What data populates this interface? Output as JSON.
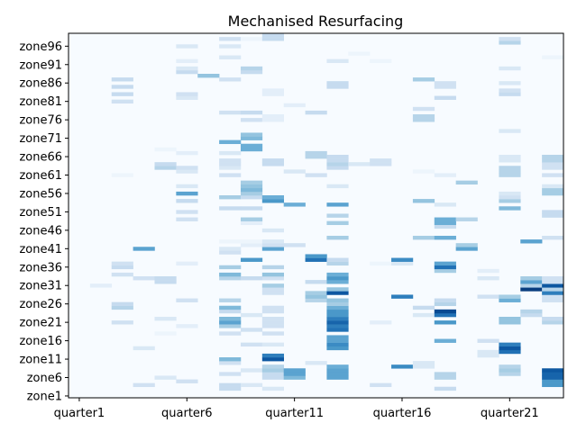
{
  "chart_data": {
    "type": "heatmap",
    "title": "Mechanised Resurfacing",
    "xlabel": "",
    "ylabel": "",
    "colormap": "Blues",
    "x_count": 23,
    "y_count": 99,
    "x_tick_labels": [
      "quarter1",
      "quarter6",
      "quarter11",
      "quarter16",
      "quarter21"
    ],
    "y_tick_labels": [
      "zone1",
      "zone6",
      "zone11",
      "zone16",
      "zone21",
      "zone26",
      "zone31",
      "zone36",
      "zone41",
      "zone46",
      "zone51",
      "zone56",
      "zone61",
      "zone66",
      "zone71",
      "zone76",
      "zone81",
      "zone86",
      "zone91",
      "zone96"
    ],
    "background_value": 0,
    "max_value": 1,
    "cells": [
      [
        1,
        30,
        0.1
      ],
      [
        2,
        20,
        0.2
      ],
      [
        2,
        24,
        0.3
      ],
      [
        2,
        25,
        0.25
      ],
      [
        2,
        33,
        0.2
      ],
      [
        2,
        35,
        0.25
      ],
      [
        2,
        36,
        0.2
      ],
      [
        2,
        60,
        0.05
      ],
      [
        2,
        80,
        0.2
      ],
      [
        2,
        82,
        0.25
      ],
      [
        2,
        84,
        0.25
      ],
      [
        2,
        86,
        0.25
      ],
      [
        3,
        3,
        0.2
      ],
      [
        3,
        13,
        0.15
      ],
      [
        3,
        32,
        0.2
      ],
      [
        3,
        40,
        0.55
      ],
      [
        4,
        5,
        0.15
      ],
      [
        4,
        17,
        0.05
      ],
      [
        4,
        21,
        0.15
      ],
      [
        4,
        31,
        0.25
      ],
      [
        4,
        32,
        0.25
      ],
      [
        4,
        62,
        0.3
      ],
      [
        4,
        63,
        0.25
      ],
      [
        4,
        67,
        0.05
      ],
      [
        5,
        4,
        0.2
      ],
      [
        5,
        19,
        0.1
      ],
      [
        5,
        26,
        0.2
      ],
      [
        5,
        36,
        0.1
      ],
      [
        5,
        48,
        0.2
      ],
      [
        5,
        50,
        0.2
      ],
      [
        5,
        53,
        0.25
      ],
      [
        5,
        55,
        0.55
      ],
      [
        5,
        57,
        0.15
      ],
      [
        5,
        61,
        0.15
      ],
      [
        5,
        62,
        0.2
      ],
      [
        5,
        66,
        0.1
      ],
      [
        5,
        81,
        0.15
      ],
      [
        5,
        82,
        0.2
      ],
      [
        5,
        88,
        0.25
      ],
      [
        5,
        89,
        0.15
      ],
      [
        5,
        91,
        0.1
      ],
      [
        5,
        95,
        0.15
      ],
      [
        6,
        87,
        0.4
      ],
      [
        7,
        2,
        0.25
      ],
      [
        7,
        3,
        0.25
      ],
      [
        7,
        6,
        0.2
      ],
      [
        7,
        9,
        0.2
      ],
      [
        7,
        10,
        0.45
      ],
      [
        7,
        17,
        0.2
      ],
      [
        7,
        19,
        0.35
      ],
      [
        7,
        20,
        0.55
      ],
      [
        7,
        21,
        0.45
      ],
      [
        7,
        23,
        0.25
      ],
      [
        7,
        24,
        0.45
      ],
      [
        7,
        26,
        0.3
      ],
      [
        7,
        32,
        0.3
      ],
      [
        7,
        33,
        0.45
      ],
      [
        7,
        35,
        0.35
      ],
      [
        7,
        39,
        0.2
      ],
      [
        7,
        40,
        0.15
      ],
      [
        7,
        42,
        0.05
      ],
      [
        7,
        51,
        0.25
      ],
      [
        7,
        54,
        0.35
      ],
      [
        7,
        60,
        0.2
      ],
      [
        7,
        62,
        0.15
      ],
      [
        7,
        63,
        0.2
      ],
      [
        7,
        64,
        0.2
      ],
      [
        7,
        66,
        0.15
      ],
      [
        7,
        69,
        0.5
      ],
      [
        7,
        77,
        0.2
      ],
      [
        7,
        86,
        0.2
      ],
      [
        7,
        92,
        0.15
      ],
      [
        7,
        95,
        0.15
      ],
      [
        7,
        97,
        0.2
      ],
      [
        8,
        3,
        0.15
      ],
      [
        8,
        7,
        0.15
      ],
      [
        8,
        14,
        0.2
      ],
      [
        8,
        18,
        0.2
      ],
      [
        8,
        22,
        0.15
      ],
      [
        8,
        32,
        0.25
      ],
      [
        8,
        37,
        0.6
      ],
      [
        8,
        41,
        0.1
      ],
      [
        8,
        42,
        0.05
      ],
      [
        8,
        47,
        0.1
      ],
      [
        8,
        48,
        0.35
      ],
      [
        8,
        51,
        0.25
      ],
      [
        8,
        54,
        0.25
      ],
      [
        8,
        55,
        0.35
      ],
      [
        8,
        56,
        0.45
      ],
      [
        8,
        57,
        0.4
      ],
      [
        8,
        58,
        0.35
      ],
      [
        8,
        67,
        0.5
      ],
      [
        8,
        68,
        0.5
      ],
      [
        8,
        70,
        0.45
      ],
      [
        8,
        71,
        0.4
      ],
      [
        8,
        75,
        0.2
      ],
      [
        8,
        77,
        0.25
      ],
      [
        8,
        88,
        0.25
      ],
      [
        8,
        89,
        0.3
      ],
      [
        8,
        97,
        0.05
      ],
      [
        9,
        2,
        0.15
      ],
      [
        9,
        5,
        0.25
      ],
      [
        9,
        6,
        0.25
      ],
      [
        9,
        7,
        0.35
      ],
      [
        9,
        8,
        0.3
      ],
      [
        9,
        10,
        0.85
      ],
      [
        9,
        11,
        0.7
      ],
      [
        9,
        14,
        0.15
      ],
      [
        9,
        17,
        0.2
      ],
      [
        9,
        19,
        0.2
      ],
      [
        9,
        20,
        0.2
      ],
      [
        9,
        21,
        0.2
      ],
      [
        9,
        23,
        0.2
      ],
      [
        9,
        24,
        0.2
      ],
      [
        9,
        28,
        0.2
      ],
      [
        9,
        29,
        0.2
      ],
      [
        9,
        30,
        0.35
      ],
      [
        9,
        32,
        0.2
      ],
      [
        9,
        33,
        0.4
      ],
      [
        9,
        35,
        0.3
      ],
      [
        9,
        40,
        0.55
      ],
      [
        9,
        41,
        0.2
      ],
      [
        9,
        42,
        0.15
      ],
      [
        9,
        45,
        0.15
      ],
      [
        9,
        53,
        0.6
      ],
      [
        9,
        54,
        0.5
      ],
      [
        9,
        63,
        0.25
      ],
      [
        9,
        64,
        0.25
      ],
      [
        9,
        75,
        0.1
      ],
      [
        9,
        76,
        0.1
      ],
      [
        9,
        82,
        0.1
      ],
      [
        9,
        83,
        0.1
      ],
      [
        9,
        97,
        0.25
      ],
      [
        9,
        98,
        0.25
      ],
      [
        10,
        5,
        0.45
      ],
      [
        10,
        6,
        0.55
      ],
      [
        10,
        7,
        0.55
      ],
      [
        10,
        41,
        0.2
      ],
      [
        10,
        52,
        0.5
      ],
      [
        10,
        61,
        0.15
      ],
      [
        10,
        79,
        0.1
      ],
      [
        11,
        9,
        0.15
      ],
      [
        11,
        26,
        0.3
      ],
      [
        11,
        27,
        0.4
      ],
      [
        11,
        28,
        0.35
      ],
      [
        11,
        31,
        0.25
      ],
      [
        11,
        37,
        0.75
      ],
      [
        11,
        38,
        0.6
      ],
      [
        11,
        60,
        0.2
      ],
      [
        11,
        65,
        0.3
      ],
      [
        11,
        66,
        0.3
      ],
      [
        11,
        77,
        0.25
      ],
      [
        12,
        5,
        0.55
      ],
      [
        12,
        6,
        0.55
      ],
      [
        12,
        7,
        0.55
      ],
      [
        12,
        8,
        0.5
      ],
      [
        12,
        13,
        0.6
      ],
      [
        12,
        14,
        0.65
      ],
      [
        12,
        15,
        0.55
      ],
      [
        12,
        16,
        0.55
      ],
      [
        12,
        18,
        0.75
      ],
      [
        12,
        19,
        0.7
      ],
      [
        12,
        20,
        0.8
      ],
      [
        12,
        21,
        0.7
      ],
      [
        12,
        22,
        0.6
      ],
      [
        12,
        23,
        0.6
      ],
      [
        12,
        24,
        0.5
      ],
      [
        12,
        25,
        0.35
      ],
      [
        12,
        26,
        0.4
      ],
      [
        12,
        28,
        0.85
      ],
      [
        12,
        29,
        0.4
      ],
      [
        12,
        31,
        0.5
      ],
      [
        12,
        32,
        0.6
      ],
      [
        12,
        33,
        0.5
      ],
      [
        12,
        36,
        0.3
      ],
      [
        12,
        37,
        0.25
      ],
      [
        12,
        43,
        0.35
      ],
      [
        12,
        47,
        0.35
      ],
      [
        12,
        49,
        0.3
      ],
      [
        12,
        52,
        0.55
      ],
      [
        12,
        57,
        0.15
      ],
      [
        12,
        62,
        0.25
      ],
      [
        12,
        63,
        0.3
      ],
      [
        12,
        64,
        0.25
      ],
      [
        12,
        65,
        0.25
      ],
      [
        12,
        84,
        0.25
      ],
      [
        12,
        85,
        0.25
      ],
      [
        12,
        91,
        0.15
      ],
      [
        13,
        63,
        0.15
      ],
      [
        13,
        93,
        0.05
      ],
      [
        14,
        3,
        0.2
      ],
      [
        14,
        20,
        0.1
      ],
      [
        14,
        36,
        0.05
      ],
      [
        14,
        63,
        0.2
      ],
      [
        14,
        64,
        0.2
      ],
      [
        14,
        91,
        0.05
      ],
      [
        15,
        8,
        0.65
      ],
      [
        15,
        27,
        0.7
      ],
      [
        15,
        36,
        0.15
      ],
      [
        15,
        37,
        0.65
      ],
      [
        16,
        8,
        0.15
      ],
      [
        16,
        9,
        0.15
      ],
      [
        16,
        22,
        0.15
      ],
      [
        16,
        24,
        0.25
      ],
      [
        16,
        43,
        0.35
      ],
      [
        16,
        53,
        0.4
      ],
      [
        16,
        61,
        0.05
      ],
      [
        16,
        75,
        0.3
      ],
      [
        16,
        76,
        0.3
      ],
      [
        16,
        78,
        0.2
      ],
      [
        16,
        86,
        0.35
      ],
      [
        17,
        2,
        0.25
      ],
      [
        17,
        5,
        0.3
      ],
      [
        17,
        6,
        0.3
      ],
      [
        17,
        15,
        0.5
      ],
      [
        17,
        20,
        0.6
      ],
      [
        17,
        22,
        0.75
      ],
      [
        17,
        23,
        0.9
      ],
      [
        17,
        25,
        0.3
      ],
      [
        17,
        26,
        0.25
      ],
      [
        17,
        34,
        0.35
      ],
      [
        17,
        35,
        0.75
      ],
      [
        17,
        36,
        0.55
      ],
      [
        17,
        43,
        0.5
      ],
      [
        17,
        46,
        0.25
      ],
      [
        17,
        47,
        0.5
      ],
      [
        17,
        48,
        0.5
      ],
      [
        17,
        52,
        0.15
      ],
      [
        17,
        60,
        0.1
      ],
      [
        17,
        81,
        0.25
      ],
      [
        17,
        84,
        0.2
      ],
      [
        17,
        85,
        0.2
      ],
      [
        18,
        40,
        0.55
      ],
      [
        18,
        41,
        0.35
      ],
      [
        18,
        48,
        0.3
      ],
      [
        18,
        58,
        0.35
      ],
      [
        19,
        11,
        0.15
      ],
      [
        19,
        12,
        0.15
      ],
      [
        19,
        15,
        0.2
      ],
      [
        19,
        27,
        0.2
      ],
      [
        19,
        32,
        0.15
      ],
      [
        19,
        34,
        0.1
      ],
      [
        20,
        6,
        0.3
      ],
      [
        20,
        7,
        0.35
      ],
      [
        20,
        8,
        0.3
      ],
      [
        20,
        12,
        0.75
      ],
      [
        20,
        13,
        0.85
      ],
      [
        20,
        14,
        0.7
      ],
      [
        20,
        20,
        0.4
      ],
      [
        20,
        21,
        0.4
      ],
      [
        20,
        26,
        0.5
      ],
      [
        20,
        27,
        0.35
      ],
      [
        20,
        51,
        0.45
      ],
      [
        20,
        53,
        0.35
      ],
      [
        20,
        54,
        0.2
      ],
      [
        20,
        55,
        0.15
      ],
      [
        20,
        60,
        0.3
      ],
      [
        20,
        61,
        0.3
      ],
      [
        20,
        62,
        0.3
      ],
      [
        20,
        64,
        0.15
      ],
      [
        20,
        65,
        0.15
      ],
      [
        20,
        72,
        0.15
      ],
      [
        20,
        82,
        0.25
      ],
      [
        20,
        83,
        0.2
      ],
      [
        20,
        85,
        0.15
      ],
      [
        20,
        89,
        0.15
      ],
      [
        20,
        96,
        0.3
      ],
      [
        20,
        97,
        0.2
      ],
      [
        21,
        22,
        0.25
      ],
      [
        21,
        23,
        0.3
      ],
      [
        21,
        29,
        0.95
      ],
      [
        21,
        30,
        0.3
      ],
      [
        21,
        31,
        0.55
      ],
      [
        21,
        32,
        0.35
      ],
      [
        21,
        42,
        0.55
      ],
      [
        22,
        3,
        0.6
      ],
      [
        22,
        4,
        0.6
      ],
      [
        22,
        5,
        0.8
      ],
      [
        22,
        6,
        0.8
      ],
      [
        22,
        7,
        0.85
      ],
      [
        22,
        20,
        0.3
      ],
      [
        22,
        21,
        0.25
      ],
      [
        22,
        26,
        0.2
      ],
      [
        22,
        27,
        0.2
      ],
      [
        22,
        28,
        0.7
      ],
      [
        22,
        29,
        0.3
      ],
      [
        22,
        30,
        0.85
      ],
      [
        22,
        31,
        0.2
      ],
      [
        22,
        32,
        0.2
      ],
      [
        22,
        43,
        0.2
      ],
      [
        22,
        49,
        0.25
      ],
      [
        22,
        50,
        0.25
      ],
      [
        22,
        55,
        0.35
      ],
      [
        22,
        56,
        0.35
      ],
      [
        22,
        57,
        0.15
      ],
      [
        22,
        60,
        0.2
      ],
      [
        22,
        62,
        0.2
      ],
      [
        22,
        63,
        0.2
      ],
      [
        22,
        64,
        0.3
      ],
      [
        22,
        65,
        0.3
      ],
      [
        22,
        92,
        0.05
      ]
    ]
  }
}
